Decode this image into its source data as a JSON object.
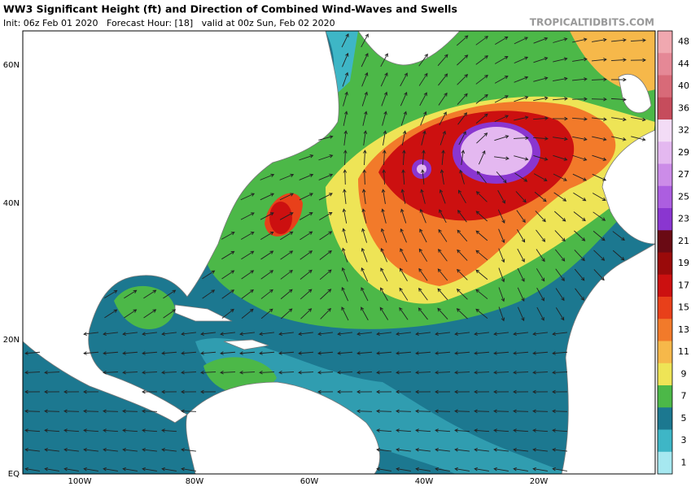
{
  "header": {
    "title": "WW3 Significant Height (ft) and Direction of Combined Wind-Waves and Swells",
    "subtitle": "Init: 06z Feb 01 2020   Forecast Hour: [18]   valid at 00z Sun, Feb 02 2020",
    "watermark": "TROPICALTIDBITS.COM"
  },
  "map": {
    "lat_labels": [
      "60N",
      "40N",
      "20N",
      "EQ"
    ],
    "lon_labels": [
      "100W",
      "80W",
      "60W",
      "40W",
      "20W"
    ]
  },
  "colorbar": [
    {
      "label": "48",
      "color": "#f0a8b0"
    },
    {
      "label": "44",
      "color": "#e58896"
    },
    {
      "label": "40",
      "color": "#d86a78"
    },
    {
      "label": "36",
      "color": "#c64c5c"
    },
    {
      "label": "32",
      "color": "#f3dcf6"
    },
    {
      "label": "29",
      "color": "#e4b8f0"
    },
    {
      "label": "27",
      "color": "#cc8ce8"
    },
    {
      "label": "25",
      "color": "#ac5ee0"
    },
    {
      "label": "23",
      "color": "#8a36d0"
    },
    {
      "label": "21",
      "color": "#6a0a14"
    },
    {
      "label": "19",
      "color": "#9a0a0a"
    },
    {
      "label": "17",
      "color": "#cc1010"
    },
    {
      "label": "15",
      "color": "#e8401a"
    },
    {
      "label": "13",
      "color": "#f27a2a"
    },
    {
      "label": "11",
      "color": "#f6b84a"
    },
    {
      "label": "9",
      "color": "#eee456"
    },
    {
      "label": "7",
      "color": "#4cb848"
    },
    {
      "label": "5",
      "color": "#1c7890"
    },
    {
      "label": "3",
      "color": "#3eb6c6"
    },
    {
      "label": "1",
      "color": "#a6e8f0"
    }
  ]
}
